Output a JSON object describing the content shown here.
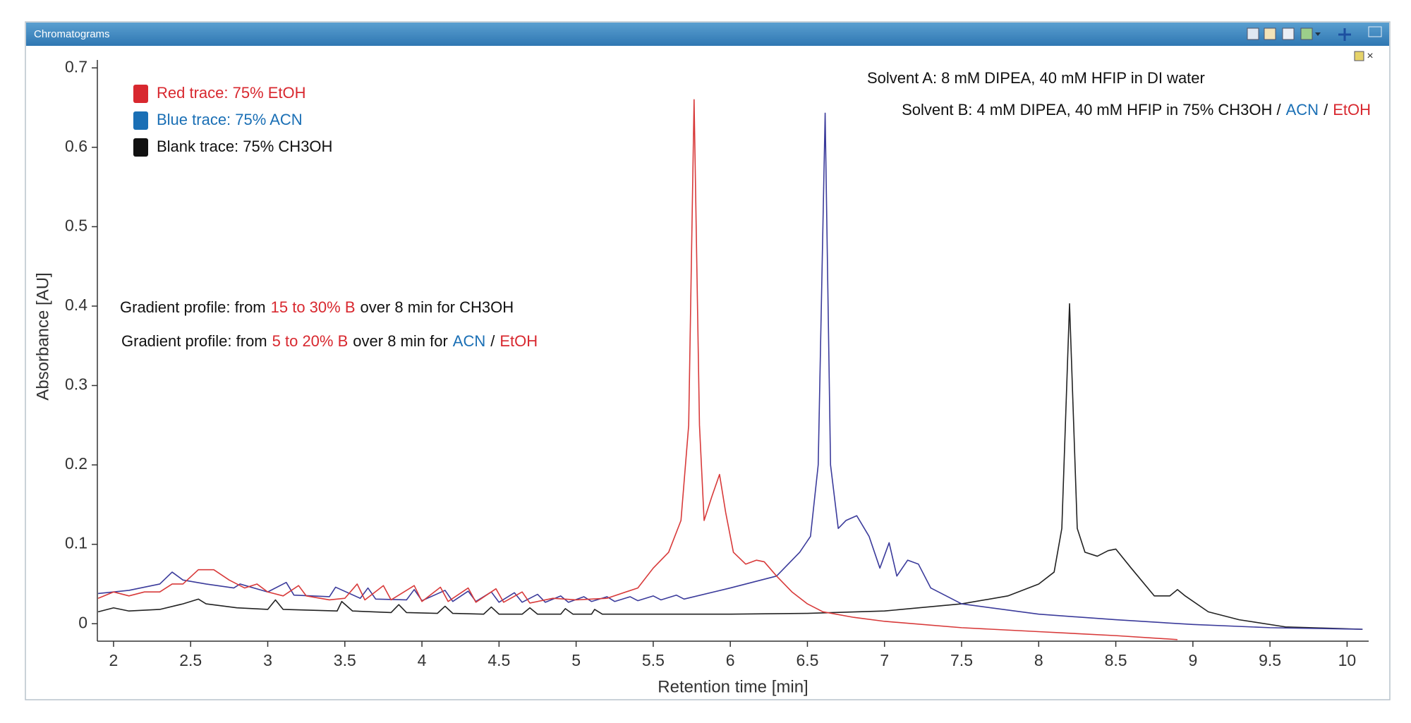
{
  "window": {
    "title": "Chromatograms"
  },
  "chart_data": {
    "type": "line",
    "x_label": "Retention time [min]",
    "y_label": "Absorbance [AU]",
    "xlim": [
      1.895,
      10.14
    ],
    "ylim": [
      -0.022,
      0.71
    ],
    "xticks": [
      2,
      2.5,
      3,
      3.5,
      4,
      4.5,
      5,
      5.5,
      6,
      6.5,
      7,
      7.5,
      8,
      8.5,
      9,
      9.5,
      10
    ],
    "yticks": [
      0,
      0.1,
      0.2,
      0.3,
      0.4,
      0.5,
      0.6,
      0.7
    ],
    "grid": false,
    "legend": "upper left",
    "series": [
      {
        "name": "Red trace: 75% EtOH",
        "color": "#d83a3a",
        "legend_color": "#d8282f",
        "x": [
          1.9,
          2.0,
          2.1,
          2.2,
          2.3,
          2.38,
          2.45,
          2.55,
          2.65,
          2.75,
          2.85,
          2.93,
          3.0,
          3.1,
          3.2,
          3.25,
          3.4,
          3.5,
          3.58,
          3.63,
          3.75,
          3.8,
          3.95,
          4.0,
          4.12,
          4.17,
          4.3,
          4.35,
          4.48,
          4.53,
          4.65,
          4.7,
          4.85,
          5.0,
          5.2,
          5.4,
          5.5,
          5.6,
          5.68,
          5.73,
          5.765,
          5.8,
          5.83,
          5.88,
          5.93,
          5.97,
          6.02,
          6.1,
          6.17,
          6.22,
          6.3,
          6.4,
          6.5,
          6.6,
          6.8,
          7.0,
          7.5,
          8.0,
          8.5,
          8.9
        ],
        "values": [
          0.032,
          0.04,
          0.035,
          0.04,
          0.04,
          0.05,
          0.05,
          0.068,
          0.068,
          0.055,
          0.045,
          0.05,
          0.04,
          0.035,
          0.048,
          0.035,
          0.03,
          0.032,
          0.05,
          0.03,
          0.048,
          0.03,
          0.048,
          0.028,
          0.046,
          0.028,
          0.045,
          0.027,
          0.044,
          0.027,
          0.04,
          0.026,
          0.032,
          0.03,
          0.032,
          0.045,
          0.07,
          0.09,
          0.13,
          0.25,
          0.66,
          0.25,
          0.13,
          0.16,
          0.188,
          0.14,
          0.09,
          0.075,
          0.08,
          0.078,
          0.06,
          0.04,
          0.025,
          0.015,
          0.008,
          0.003,
          -0.005,
          -0.01,
          -0.015,
          -0.02
        ]
      },
      {
        "name": "Blue trace: 75% ACN",
        "color": "#3b3b9b",
        "legend_color": "#1a6fb5",
        "x": [
          1.9,
          2.1,
          2.3,
          2.38,
          2.45,
          2.6,
          2.78,
          2.82,
          3.0,
          3.12,
          3.17,
          3.4,
          3.44,
          3.6,
          3.65,
          3.7,
          3.9,
          3.95,
          4.0,
          4.15,
          4.2,
          4.3,
          4.35,
          4.45,
          4.5,
          4.6,
          4.65,
          4.75,
          4.8,
          4.9,
          4.95,
          5.05,
          5.1,
          5.2,
          5.25,
          5.35,
          5.4,
          5.5,
          5.55,
          5.65,
          5.7,
          6.0,
          6.3,
          6.45,
          6.52,
          6.57,
          6.615,
          6.65,
          6.7,
          6.75,
          6.82,
          6.9,
          6.97,
          7.03,
          7.08,
          7.15,
          7.22,
          7.3,
          7.5,
          8.0,
          8.5,
          9.0,
          9.5,
          10.1
        ],
        "values": [
          0.038,
          0.042,
          0.05,
          0.065,
          0.055,
          0.05,
          0.045,
          0.05,
          0.04,
          0.052,
          0.036,
          0.034,
          0.046,
          0.032,
          0.045,
          0.031,
          0.03,
          0.043,
          0.029,
          0.042,
          0.028,
          0.041,
          0.028,
          0.04,
          0.027,
          0.039,
          0.027,
          0.037,
          0.027,
          0.035,
          0.027,
          0.034,
          0.028,
          0.034,
          0.028,
          0.034,
          0.029,
          0.035,
          0.03,
          0.036,
          0.031,
          0.045,
          0.06,
          0.09,
          0.11,
          0.2,
          0.643,
          0.2,
          0.12,
          0.13,
          0.136,
          0.11,
          0.07,
          0.102,
          0.06,
          0.08,
          0.075,
          0.045,
          0.025,
          0.012,
          0.005,
          -0.001,
          -0.005,
          -0.007
        ]
      },
      {
        "name": "Blank trace: 75% CH3OH",
        "color": "#222222",
        "legend_color": "#111111",
        "x": [
          1.9,
          2.0,
          2.1,
          2.3,
          2.45,
          2.55,
          2.6,
          2.8,
          3.0,
          3.05,
          3.1,
          3.45,
          3.48,
          3.55,
          3.8,
          3.85,
          3.9,
          4.1,
          4.15,
          4.2,
          4.4,
          4.45,
          4.5,
          4.65,
          4.7,
          4.75,
          4.9,
          4.93,
          4.98,
          5.1,
          5.12,
          5.17,
          5.5,
          6.0,
          6.5,
          7.0,
          7.5,
          7.8,
          8.0,
          8.1,
          8.15,
          8.2,
          8.25,
          8.3,
          8.38,
          8.45,
          8.5,
          8.6,
          8.75,
          8.85,
          8.9,
          8.95,
          9.1,
          9.3,
          9.6,
          10.1
        ],
        "values": [
          0.015,
          0.02,
          0.016,
          0.018,
          0.025,
          0.031,
          0.025,
          0.02,
          0.018,
          0.03,
          0.018,
          0.016,
          0.028,
          0.016,
          0.014,
          0.024,
          0.014,
          0.013,
          0.022,
          0.013,
          0.012,
          0.021,
          0.012,
          0.012,
          0.02,
          0.012,
          0.012,
          0.019,
          0.012,
          0.012,
          0.018,
          0.012,
          0.012,
          0.012,
          0.013,
          0.016,
          0.025,
          0.035,
          0.05,
          0.065,
          0.12,
          0.403,
          0.12,
          0.09,
          0.085,
          0.092,
          0.094,
          0.07,
          0.035,
          0.035,
          0.043,
          0.035,
          0.015,
          0.005,
          -0.004,
          -0.007
        ]
      }
    ],
    "annotations": [
      {
        "segments": [
          {
            "text": "Solvent A: 8 mM DIPEA, 40 mM HFIP in DI water",
            "color": "#111111"
          }
        ]
      },
      {
        "segments": [
          {
            "text": "Solvent B: 4 mM DIPEA, 40 mM HFIP in 75% CH3OH /",
            "color": "#111111"
          },
          {
            "text": "ACN",
            "color": "#1a6fb5"
          },
          {
            "text": "/",
            "color": "#111111"
          },
          {
            "text": "EtOH",
            "color": "#d8282f"
          }
        ]
      },
      {
        "segments": [
          {
            "text": "Gradient profile: from",
            "color": "#111111"
          },
          {
            "text": "15 to 30% B",
            "color": "#d8282f"
          },
          {
            "text": "over 8 min for CH3OH",
            "color": "#111111"
          }
        ]
      },
      {
        "segments": [
          {
            "text": "Gradient profile: from",
            "color": "#111111"
          },
          {
            "text": "5 to 20% B",
            "color": "#d8282f"
          },
          {
            "text": "over 8 min for",
            "color": "#111111"
          },
          {
            "text": "ACN",
            "color": "#1a6fb5"
          },
          {
            "text": "/",
            "color": "#111111"
          },
          {
            "text": "EtOH",
            "color": "#d8282f"
          }
        ]
      }
    ]
  }
}
